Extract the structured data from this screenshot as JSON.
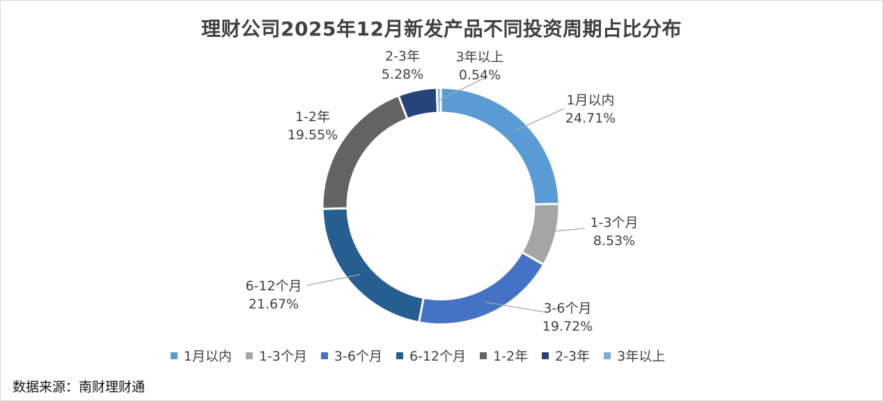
{
  "chart_data": {
    "type": "donut",
    "title": "理财公司2025年12月新发产品不同投资周期占比分布",
    "slices": [
      {
        "label": "1月以内",
        "value": 24.71,
        "value_label": "24.71%",
        "color": "#5b9bd5"
      },
      {
        "label": "1-3个月",
        "value": 8.53,
        "value_label": "8.53%",
        "color": "#a5a5a5"
      },
      {
        "label": "3-6个月",
        "value": 19.72,
        "value_label": "19.72%",
        "color": "#4472c4"
      },
      {
        "label": "6-12个月",
        "value": 21.67,
        "value_label": "21.67%",
        "color": "#255e91"
      },
      {
        "label": "1-2年",
        "value": 19.55,
        "value_label": "19.55%",
        "color": "#636363"
      },
      {
        "label": "2-3年",
        "value": 5.28,
        "value_label": "5.28%",
        "color": "#264478"
      },
      {
        "label": "3年以上",
        "value": 0.54,
        "value_label": "0.54%",
        "color": "#7cafdd"
      }
    ],
    "start_angle": "top",
    "direction": "clockwise",
    "legend_position": "bottom"
  },
  "source_note": "数据来源：南财理财通"
}
